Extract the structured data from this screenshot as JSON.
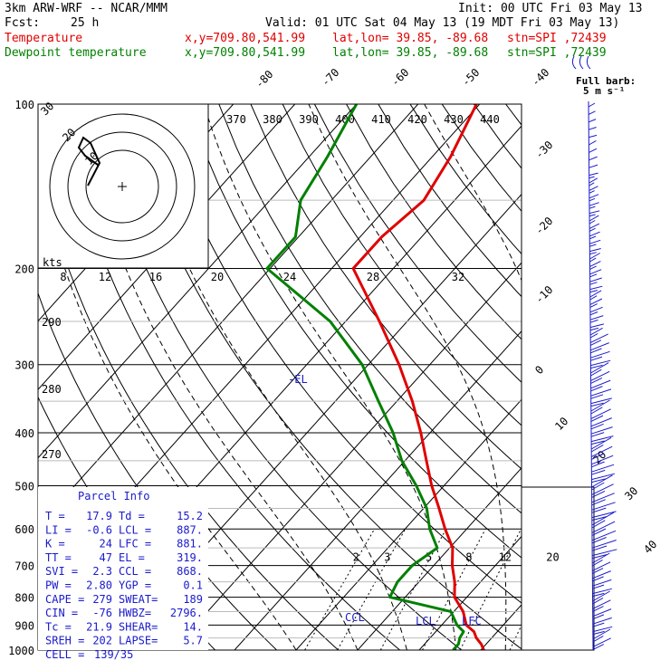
{
  "header": {
    "model": "3km ARW-WRF -- NCAR/MMM",
    "init": "Init: 00 UTC Fri 03 May 13",
    "fcst_label": "Fcst:",
    "fcst_value": "25 h",
    "valid": "Valid: 01 UTC Sat 04 May 13 (19 MDT Fri 03 May 13)",
    "temp_label": "Temperature",
    "dew_label": "Dewpoint temperature",
    "xy": "x,y=709.80,541.99",
    "latlon": "lat,lon= 39.85, -89.68",
    "stn": "stn=SPI ,72439"
  },
  "colors": {
    "temperature": "#e00000",
    "dewpoint": "#008000",
    "panel_text": "#1a1acc",
    "barbs": "#1a1acc"
  },
  "icons": [
    "hodograph-center-plus",
    "wind-barb"
  ],
  "chart_data": {
    "type": "line",
    "title": "",
    "xlabel": "",
    "ylabel": "",
    "pressure_ticks": [
      100,
      200,
      300,
      400,
      500,
      600,
      700,
      800,
      900,
      1000
    ],
    "isotherm_labels": [
      -80,
      -70,
      -60,
      -50,
      -40,
      -30,
      -20,
      -10,
      0,
      10,
      20,
      30,
      40
    ],
    "theta_labels_top": [
      370,
      380,
      390,
      400,
      410,
      420,
      430,
      440
    ],
    "theta_labels_left": [
      290,
      280,
      270
    ],
    "hodograph_kts_labels": [
      8,
      12,
      16,
      20,
      24,
      28,
      32
    ],
    "hodograph_kts_unit": "kts",
    "hodograph_ring_labels": [
      10,
      20,
      30
    ],
    "mixing_ratio_labels": [
      2,
      3,
      5,
      8,
      12,
      20
    ],
    "full_barb_label": "Full barb:",
    "full_barb_value": "5 m s⁻¹",
    "el_label": "-EL",
    "lcl_label": "LCL",
    "lfc_label": "LFC",
    "ccl_label": "CCL",
    "series": [
      {
        "name": "Temperature",
        "color": "#e00000",
        "points": [
          [
            1000,
            20.5
          ],
          [
            975,
            19.2
          ],
          [
            950,
            17.5
          ],
          [
            925,
            16.2
          ],
          [
            900,
            14.0
          ],
          [
            850,
            11.5
          ],
          [
            800,
            8.0
          ],
          [
            750,
            5.8
          ],
          [
            700,
            3.0
          ],
          [
            650,
            0.5
          ],
          [
            600,
            -3.5
          ],
          [
            550,
            -7.5
          ],
          [
            500,
            -12.0
          ],
          [
            450,
            -16.5
          ],
          [
            400,
            -21.5
          ],
          [
            350,
            -27.5
          ],
          [
            300,
            -35.0
          ],
          [
            250,
            -44.5
          ],
          [
            200,
            -56.5
          ],
          [
            175,
            -56.5
          ],
          [
            150,
            -55.0
          ],
          [
            125,
            -57.0
          ],
          [
            100,
            -60.5
          ]
        ]
      },
      {
        "name": "Dewpoint temperature",
        "color": "#008000",
        "points": [
          [
            1000,
            15.5
          ],
          [
            975,
            15.5
          ],
          [
            950,
            14.8
          ],
          [
            925,
            14.5
          ],
          [
            900,
            12.5
          ],
          [
            850,
            9.5
          ],
          [
            800,
            -2.5
          ],
          [
            750,
            -3.5
          ],
          [
            700,
            -3.5
          ],
          [
            650,
            -2.0
          ],
          [
            600,
            -6.0
          ],
          [
            550,
            -9.5
          ],
          [
            500,
            -14.5
          ],
          [
            450,
            -20.5
          ],
          [
            400,
            -26.0
          ],
          [
            350,
            -33.0
          ],
          [
            300,
            -41.0
          ],
          [
            250,
            -52.5
          ],
          [
            200,
            -70.5
          ],
          [
            175,
            -70.5
          ],
          [
            150,
            -75.0
          ],
          [
            125,
            -77.0
          ],
          [
            100,
            -80.0
          ]
        ]
      }
    ]
  },
  "parcel_info": {
    "title": "Parcel Info",
    "rows": [
      [
        "T  =",
        "17.9",
        "Td =",
        "15.2"
      ],
      [
        "LI =",
        "-0.6",
        "LCL =",
        "887."
      ],
      [
        "K  =",
        "24",
        "LFC =",
        "881."
      ],
      [
        "TT =",
        "47",
        "EL =",
        "319."
      ],
      [
        "SVI =",
        "2.3",
        "CCL =",
        "868."
      ],
      [
        "PW =",
        "2.80",
        "YGP =",
        "0.1"
      ],
      [
        "CAPE =",
        "279",
        "SWEAT=",
        "189"
      ],
      [
        "CIN =",
        "-76",
        "HWBZ=",
        "2796."
      ],
      [
        "Tc =",
        "21.9",
        "SHEAR=",
        "14."
      ],
      [
        "SREH =",
        "202",
        "LAPSE=",
        "5.7"
      ]
    ],
    "cell_label": "CELL =",
    "cell_value": "139/35"
  }
}
